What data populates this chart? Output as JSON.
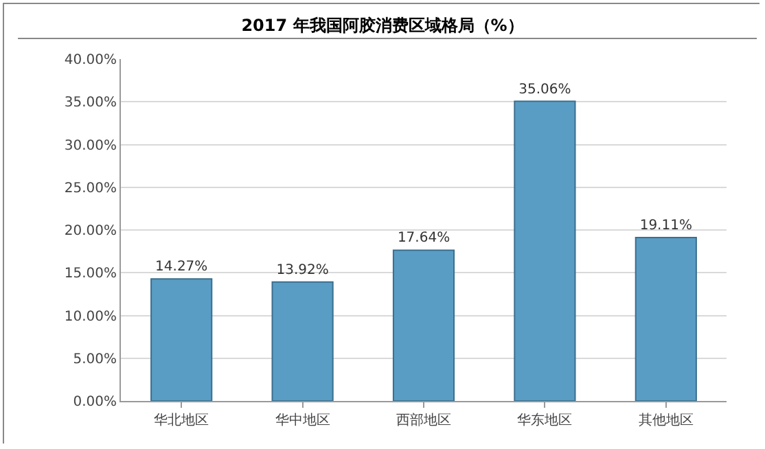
{
  "chart_data": {
    "type": "bar",
    "title": "2017 年我国阿胶消费区域格局（%）",
    "categories": [
      "华北地区",
      "华中地区",
      "西部地区",
      "华东地区",
      "其他地区"
    ],
    "values": [
      14.27,
      13.92,
      17.64,
      35.06,
      19.11
    ],
    "value_labels": [
      "14.27%",
      "13.92%",
      "17.64%",
      "35.06%",
      "19.11%"
    ],
    "color": "#5a9dc4",
    "ylim": [
      0,
      40
    ],
    "yticks": [
      {
        "value": 0,
        "label": "0.00%"
      },
      {
        "value": 5,
        "label": "5.00%"
      },
      {
        "value": 10,
        "label": "10.00%"
      },
      {
        "value": 15,
        "label": "15.00%"
      },
      {
        "value": 20,
        "label": "20.00%"
      },
      {
        "value": 25,
        "label": "25.00%"
      },
      {
        "value": 30,
        "label": "30.00%"
      },
      {
        "value": 35,
        "label": "35.00%"
      },
      {
        "value": 40,
        "label": "40.00%"
      }
    ],
    "grid": "y",
    "legend": false
  }
}
